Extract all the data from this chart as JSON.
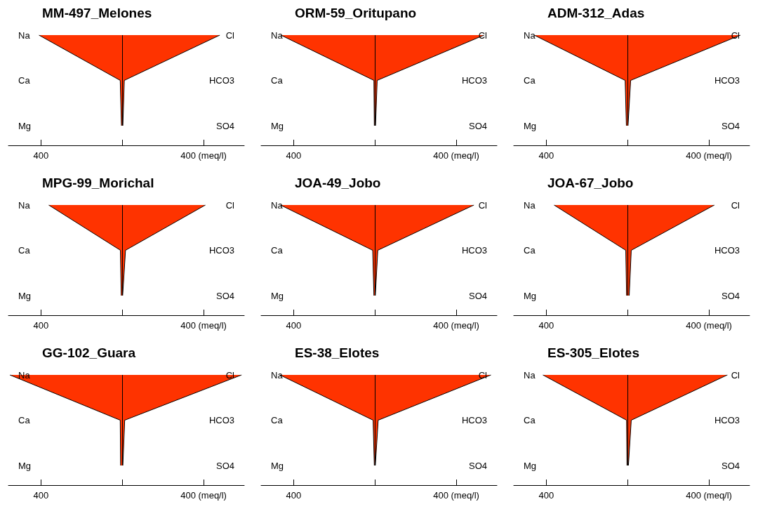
{
  "chart_data": [
    {
      "type": "area",
      "title": "MM-497_Melones",
      "orientation": "horizontal",
      "categories": [
        "Na",
        "Ca",
        "Mg"
      ],
      "y2_categories": [
        "Cl",
        "HCO3",
        "SO4"
      ],
      "series": [
        {
          "color": "#ff3300",
          "values": [
            -410,
            -10,
            -4
          ]
        },
        {
          "color": "#fe3300",
          "values": [
            480,
            10,
            3
          ]
        }
      ],
      "xlim": [
        -560,
        600
      ],
      "xticks": [
        {
          "value": -400,
          "label": "400"
        },
        {
          "value": 0,
          "label": null
        },
        {
          "value": 400,
          "label": "400 (meq/l)"
        }
      ],
      "ref_lines": [
        {
          "axis": "x",
          "value": 0
        }
      ]
    },
    {
      "type": "area",
      "title": "ORM-59_Oritupano",
      "orientation": "horizontal",
      "categories": [
        "Na",
        "Ca",
        "Mg"
      ],
      "y2_categories": [
        "Cl",
        "HCO3",
        "SO4"
      ],
      "series": [
        {
          "color": "#ff3300",
          "values": [
            -463,
            -5,
            -3
          ]
        },
        {
          "color": "#fe3300",
          "values": [
            537,
            11,
            3
          ]
        }
      ],
      "xlim": [
        -560,
        600
      ],
      "xticks": [
        {
          "value": -400,
          "label": "400"
        },
        {
          "value": 0,
          "label": null
        },
        {
          "value": 400,
          "label": "400 (meq/l)"
        }
      ],
      "ref_lines": [
        {
          "axis": "x",
          "value": 0
        }
      ]
    },
    {
      "type": "area",
      "title": "ADM-312_Adas",
      "orientation": "horizontal",
      "categories": [
        "Na",
        "Ca",
        "Mg"
      ],
      "y2_categories": [
        "Cl",
        "HCO3",
        "SO4"
      ],
      "series": [
        {
          "color": "#ff3300",
          "values": [
            -460,
            -12,
            -6
          ]
        },
        {
          "color": "#fe3300",
          "values": [
            555,
            15,
            2
          ]
        }
      ],
      "xlim": [
        -560,
        600
      ],
      "xticks": [
        {
          "value": -400,
          "label": "400"
        },
        {
          "value": 0,
          "label": null
        },
        {
          "value": 400,
          "label": "400 (meq/l)"
        }
      ],
      "ref_lines": [
        {
          "axis": "x",
          "value": 0
        }
      ]
    },
    {
      "type": "area",
      "title": "MPG-99_Morichal",
      "orientation": "horizontal",
      "categories": [
        "Na",
        "Ca",
        "Mg"
      ],
      "y2_categories": [
        "Cl",
        "HCO3",
        "SO4"
      ],
      "series": [
        {
          "color": "#ff3300",
          "values": [
            -362,
            -9,
            -5
          ]
        },
        {
          "color": "#fe3300",
          "values": [
            409,
            16,
            2
          ]
        }
      ],
      "xlim": [
        -560,
        600
      ],
      "xticks": [
        {
          "value": -400,
          "label": "400"
        },
        {
          "value": 0,
          "label": null
        },
        {
          "value": 400,
          "label": "400 (meq/l)"
        }
      ],
      "ref_lines": [
        {
          "axis": "x",
          "value": 0
        }
      ]
    },
    {
      "type": "area",
      "title": "JOA-49_Jobo",
      "orientation": "horizontal",
      "categories": [
        "Na",
        "Ca",
        "Mg"
      ],
      "y2_categories": [
        "Cl",
        "HCO3",
        "SO4"
      ],
      "series": [
        {
          "color": "#ff3300",
          "values": [
            -465,
            -11,
            -5
          ]
        },
        {
          "color": "#fe3300",
          "values": [
            487,
            14,
            2
          ]
        }
      ],
      "xlim": [
        -560,
        600
      ],
      "xticks": [
        {
          "value": -400,
          "label": "400"
        },
        {
          "value": 0,
          "label": null
        },
        {
          "value": 400,
          "label": "400 (meq/l)"
        }
      ],
      "ref_lines": [
        {
          "axis": "x",
          "value": 0
        }
      ]
    },
    {
      "type": "area",
      "title": "JOA-67_Jobo",
      "orientation": "horizontal",
      "categories": [
        "Na",
        "Ca",
        "Mg"
      ],
      "y2_categories": [
        "Cl",
        "HCO3",
        "SO4"
      ],
      "series": [
        {
          "color": "#ff3300",
          "values": [
            -362,
            -9,
            -5
          ]
        },
        {
          "color": "#fe3300",
          "values": [
            427,
            18,
            8
          ]
        }
      ],
      "xlim": [
        -560,
        600
      ],
      "xticks": [
        {
          "value": -400,
          "label": "400"
        },
        {
          "value": 0,
          "label": null
        },
        {
          "value": 400,
          "label": "400 (meq/l)"
        }
      ],
      "ref_lines": [
        {
          "axis": "x",
          "value": 0
        }
      ]
    },
    {
      "type": "area",
      "title": "GG-102_Guara",
      "orientation": "horizontal",
      "categories": [
        "Na",
        "Ca",
        "Mg"
      ],
      "y2_categories": [
        "Cl",
        "HCO3",
        "SO4"
      ],
      "series": [
        {
          "color": "#ff3300",
          "values": [
            -553,
            -10,
            -8
          ]
        },
        {
          "color": "#fe3300",
          "values": [
            587,
            12,
            3
          ]
        }
      ],
      "xlim": [
        -560,
        600
      ],
      "xticks": [
        {
          "value": -400,
          "label": "400"
        },
        {
          "value": 0,
          "label": null
        },
        {
          "value": 400,
          "label": "400 (meq/l)"
        }
      ],
      "ref_lines": [
        {
          "axis": "x",
          "value": 0
        }
      ]
    },
    {
      "type": "area",
      "title": "ES-38_Elotes",
      "orientation": "horizontal",
      "categories": [
        "Na",
        "Ca",
        "Mg"
      ],
      "y2_categories": [
        "Cl",
        "HCO3",
        "SO4"
      ],
      "series": [
        {
          "color": "#ff3300",
          "values": [
            -468,
            -9,
            -3
          ]
        },
        {
          "color": "#fe3300",
          "values": [
            571,
            16,
            2
          ]
        }
      ],
      "xlim": [
        -560,
        600
      ],
      "xticks": [
        {
          "value": -400,
          "label": "400"
        },
        {
          "value": 0,
          "label": null
        },
        {
          "value": 400,
          "label": "400 (meq/l)"
        }
      ],
      "ref_lines": [
        {
          "axis": "x",
          "value": 0
        }
      ]
    },
    {
      "type": "area",
      "title": "ES-305_Elotes",
      "orientation": "horizontal",
      "categories": [
        "Na",
        "Ca",
        "Mg"
      ],
      "y2_categories": [
        "Cl",
        "HCO3",
        "SO4"
      ],
      "series": [
        {
          "color": "#ff3300",
          "values": [
            -417,
            -5,
            -3
          ]
        },
        {
          "color": "#fe3300",
          "values": [
            491,
            18,
            4
          ]
        }
      ],
      "xlim": [
        -560,
        600
      ],
      "xticks": [
        {
          "value": -400,
          "label": "400"
        },
        {
          "value": 0,
          "label": null
        },
        {
          "value": 400,
          "label": "400 (meq/l)"
        }
      ],
      "ref_lines": [
        {
          "axis": "x",
          "value": 0
        }
      ]
    }
  ]
}
